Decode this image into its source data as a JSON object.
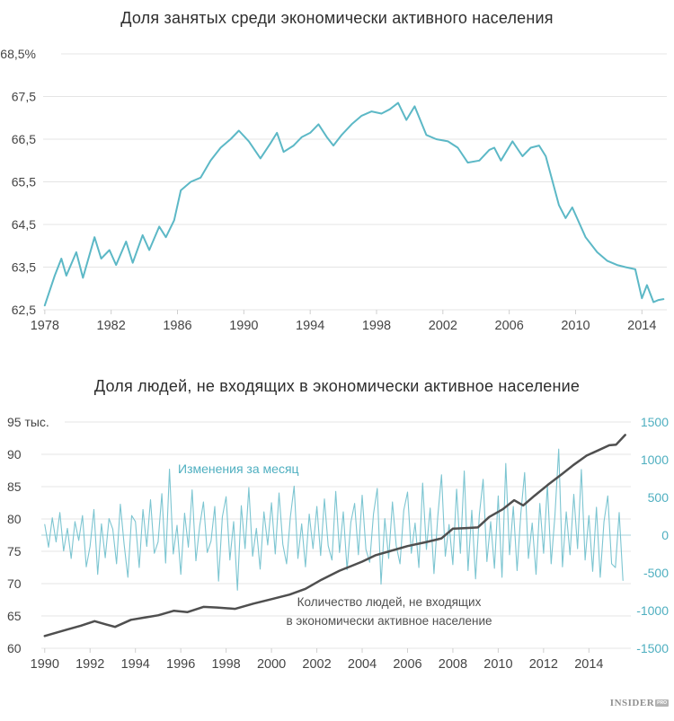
{
  "chart1": {
    "title": "Доля занятых среди экономически активного населения"
  },
  "chart2": {
    "title": "Доля людей, не входящих в экономически активное население",
    "annotation_changes": "Изменения за месяц",
    "annotation_level_line1": "Количество людей, не входящих",
    "annotation_level_line2": "в экономически активное население"
  },
  "logo": {
    "name": "INSIDER",
    "suffix": "PRO"
  },
  "colors": {
    "teal_line": "#5cb8c6",
    "teal_thin_line": "#7cc5d1",
    "teal_text": "#4fafc0",
    "zero_line": "#a5d2da",
    "dark_line": "#4f4f4f",
    "grid": "#e4e4e4",
    "tick": "#cfcfcf",
    "axis_text": "#454545"
  },
  "chart_data": [
    {
      "type": "line",
      "title": "Доля занятых среди экономически активного населения",
      "ylabel": "%",
      "ylim": [
        62.5,
        68.5
      ],
      "xlim": [
        1977.9,
        2015.5
      ],
      "grid": true,
      "y_ticks": {
        "values": [
          68.5,
          67.5,
          66.5,
          65.5,
          64.5,
          63.5,
          62.5
        ],
        "labels": [
          "68,5%",
          "67,5",
          "66,5",
          "65,5",
          "64,5",
          "63,5",
          "62,5"
        ]
      },
      "x_ticks": [
        1978,
        1982,
        1986,
        1990,
        1994,
        1998,
        2002,
        2006,
        2010,
        2014
      ],
      "series": [
        {
          "name": "employment-share",
          "color": "#5cb8c6",
          "width": 2,
          "x": [
            1978.0,
            1978.6,
            1979.0,
            1979.3,
            1979.9,
            1980.3,
            1981.0,
            1981.4,
            1981.9,
            1982.3,
            1982.9,
            1983.3,
            1983.9,
            1984.3,
            1984.9,
            1985.3,
            1985.8,
            1986.2,
            1986.8,
            1987.4,
            1988.0,
            1988.6,
            1989.2,
            1989.7,
            1990.3,
            1991.0,
            1991.6,
            1992.0,
            1992.4,
            1993.0,
            1993.5,
            1994.0,
            1994.5,
            1995.0,
            1995.4,
            1995.9,
            1996.5,
            1997.1,
            1997.7,
            1998.3,
            1998.8,
            1999.3,
            1999.8,
            2000.3,
            2001.0,
            2001.6,
            2002.3,
            2002.9,
            2003.5,
            2004.2,
            2004.8,
            2005.1,
            2005.5,
            2006.2,
            2006.8,
            2007.3,
            2007.8,
            2008.2,
            2009.0,
            2009.4,
            2009.8,
            2010.6,
            2011.3,
            2011.9,
            2012.5,
            2013.0,
            2013.6,
            2014.0,
            2014.3,
            2014.7,
            2015.0,
            2015.3
          ],
          "y": [
            62.6,
            63.3,
            63.7,
            63.3,
            63.85,
            63.25,
            64.2,
            63.7,
            63.9,
            63.55,
            64.1,
            63.6,
            64.25,
            63.9,
            64.45,
            64.2,
            64.6,
            65.3,
            65.5,
            65.6,
            66.0,
            66.3,
            66.5,
            66.7,
            66.45,
            66.05,
            66.4,
            66.65,
            66.2,
            66.35,
            66.55,
            66.65,
            66.85,
            66.55,
            66.35,
            66.6,
            66.85,
            67.05,
            67.15,
            67.1,
            67.2,
            67.35,
            66.95,
            67.27,
            66.6,
            66.5,
            66.45,
            66.3,
            65.95,
            66.0,
            66.25,
            66.3,
            66.0,
            66.45,
            66.1,
            66.3,
            66.35,
            66.1,
            64.95,
            64.65,
            64.9,
            64.2,
            63.85,
            63.65,
            63.55,
            63.5,
            63.45,
            62.77,
            63.08,
            62.68,
            62.73,
            62.75
          ]
        }
      ]
    },
    {
      "type": "line",
      "title": "Доля людей, не входящих в экономически активное население",
      "xlim": [
        1989.85,
        2015.85
      ],
      "grid": true,
      "left_axis": {
        "ylim": [
          60,
          95
        ],
        "values": [
          95,
          90,
          85,
          80,
          75,
          70,
          65,
          60
        ],
        "labels": [
          "95 тыс.",
          "90",
          "85",
          "80",
          "75",
          "70",
          "65",
          "60"
        ]
      },
      "right_axis": {
        "ylim": [
          -1500,
          1500
        ],
        "values": [
          1500,
          1000,
          500,
          0,
          -500,
          -1000,
          -1500
        ],
        "labels": [
          "1500",
          "1000",
          "500",
          "0",
          "-500",
          "-1000",
          "-1500"
        ]
      },
      "x_ticks": [
        1990,
        1992,
        1994,
        1996,
        1998,
        2000,
        2002,
        2004,
        2006,
        2008,
        2010,
        2012,
        2014
      ],
      "zero_line": {
        "axis": "right",
        "value": 0
      },
      "series": [
        {
          "name": "monthly-change",
          "legend": "Изменения за месяц",
          "axis": "right",
          "color": "#7cc5d1",
          "width": 1.1,
          "x_start": 1990.0,
          "x_step": 0.166667,
          "values": [
            140,
            -160,
            230,
            -90,
            300,
            -210,
            90,
            -310,
            180,
            -70,
            260,
            -420,
            -150,
            340,
            -520,
            150,
            -300,
            220,
            80,
            -380,
            410,
            -120,
            -560,
            260,
            180,
            -430,
            340,
            -150,
            470,
            -240,
            -90,
            550,
            -370,
            875,
            -250,
            130,
            -520,
            290,
            -160,
            600,
            -340,
            120,
            440,
            -230,
            -80,
            380,
            -610,
            240,
            510,
            -330,
            180,
            -730,
            390,
            -180,
            630,
            -280,
            90,
            -450,
            310,
            -130,
            430,
            -250,
            560,
            -120,
            -380,
            240,
            650,
            -310,
            150,
            -420,
            280,
            -180,
            380,
            -270,
            480,
            -140,
            -330,
            580,
            -230,
            310,
            -460,
            170,
            420,
            -260,
            530,
            -190,
            -360,
            280,
            620,
            -650,
            220,
            -310,
            440,
            -140,
            -380,
            330,
            570,
            -240,
            160,
            -430,
            690,
            -190,
            360,
            -510,
            240,
            800,
            -280,
            140,
            -390,
            610,
            -240,
            850,
            -470,
            330,
            -580,
            270,
            740,
            -350,
            180,
            -440,
            520,
            -560,
            950,
            -260,
            380,
            -470,
            290,
            830,
            -310,
            160,
            -520,
            420,
            -240,
            670,
            -380,
            260,
            1140,
            -420,
            310,
            -260,
            540,
            -180,
            870,
            -330,
            260,
            -480,
            370,
            -560,
            180,
            520,
            -380,
            -430,
            300,
            -600
          ]
        },
        {
          "name": "not-in-labor-force",
          "legend": "Количество людей, не входящих в экономически активное население",
          "axis": "left",
          "color": "#4f4f4f",
          "width": 2.5,
          "x": [
            1990.0,
            1990.5,
            1991.0,
            1991.6,
            1992.2,
            1992.7,
            1993.1,
            1993.8,
            1994.5,
            1995.0,
            1995.7,
            1996.3,
            1997.0,
            1997.6,
            1998.4,
            1999.2,
            2000.0,
            2000.8,
            2001.5,
            2002.2,
            2003.0,
            2003.5,
            2004.0,
            2004.6,
            2005.2,
            2006.0,
            2006.8,
            2007.5,
            2008.0,
            2008.6,
            2009.1,
            2009.6,
            2010.2,
            2010.7,
            2011.1,
            2011.6,
            2012.2,
            2012.8,
            2013.3,
            2013.9,
            2014.4,
            2014.9,
            2015.2,
            2015.6
          ],
          "y": [
            61.9,
            62.4,
            62.9,
            63.5,
            64.2,
            63.7,
            63.3,
            64.4,
            64.8,
            65.1,
            65.8,
            65.6,
            66.4,
            66.3,
            66.1,
            66.9,
            67.6,
            68.3,
            69.2,
            70.6,
            72.0,
            72.7,
            73.4,
            74.4,
            75.0,
            75.8,
            76.4,
            77.0,
            78.5,
            78.6,
            78.7,
            80.3,
            81.5,
            82.9,
            82.1,
            83.6,
            85.3,
            86.9,
            88.3,
            89.8,
            90.6,
            91.4,
            91.5,
            93.0
          ]
        }
      ]
    }
  ]
}
